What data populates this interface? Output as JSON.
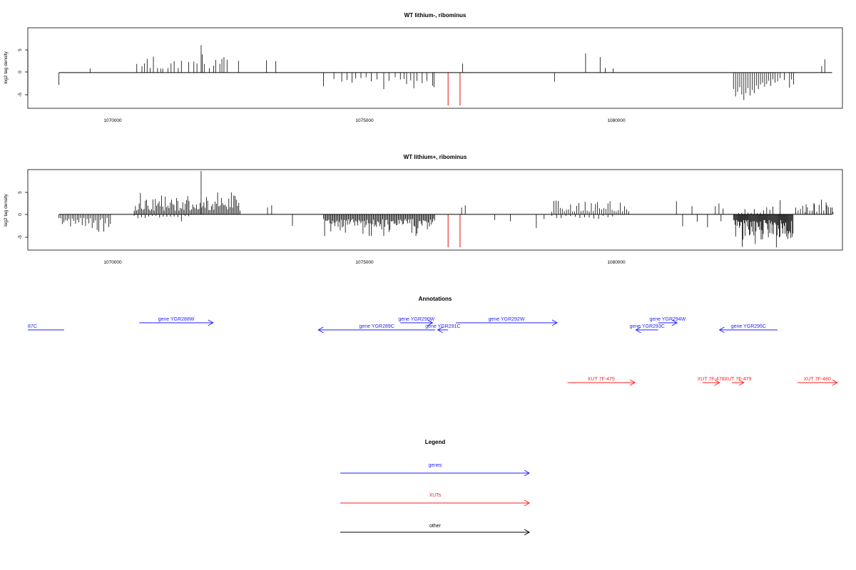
{
  "chart_data": [
    {
      "type": "bar",
      "title": "WT lithium-, ribominus",
      "ylabel": "log2 tag density",
      "xlim": [
        1068200,
        1083900
      ],
      "ylim": [
        -7.8,
        9.8
      ],
      "x_ticks": [
        1070000,
        1075000,
        1080000
      ],
      "x_tick_labels": [
        "1070000",
        "1075000",
        "1080000"
      ],
      "y_ticks": [
        -5,
        0,
        5
      ],
      "y_tick_labels": [
        "-5",
        "0",
        "5"
      ],
      "baseline": {
        "x_start": 1068800,
        "x_end": 1083700
      },
      "highlight_color": "#e8231e",
      "bars": [
        [
          1068800,
          -2.7
        ],
        [
          1069400,
          0.9
        ],
        [
          1070300,
          1.9
        ],
        [
          1070400,
          1.4
        ],
        [
          1070450,
          2.0
        ],
        [
          1070500,
          3.0
        ],
        [
          1070560,
          1.0
        ],
        [
          1070620,
          3.5
        ],
        [
          1070700,
          1.0
        ],
        [
          1070760,
          0.9
        ],
        [
          1070800,
          0.9
        ],
        [
          1070900,
          1.0
        ],
        [
          1070960,
          2.0
        ],
        [
          1071020,
          2.5
        ],
        [
          1071100,
          1.0
        ],
        [
          1071160,
          2.6
        ],
        [
          1071300,
          2.3
        ],
        [
          1071400,
          2.4
        ],
        [
          1071460,
          2.0
        ],
        [
          1071540,
          6.0
        ],
        [
          1071560,
          4.0
        ],
        [
          1071600,
          1.9
        ],
        [
          1071700,
          1.0
        ],
        [
          1071780,
          1.5
        ],
        [
          1071820,
          2.8
        ],
        [
          1071900,
          1.9
        ],
        [
          1071940,
          3.0
        ],
        [
          1071980,
          3.4
        ],
        [
          1072040,
          2.8
        ],
        [
          1072260,
          2.6
        ],
        [
          1072800,
          2.7
        ],
        [
          1072980,
          2.5
        ],
        [
          1073900,
          -3.0
        ],
        [
          1074100,
          -1.4
        ],
        [
          1074250,
          -2.0
        ],
        [
          1074350,
          -1.6
        ],
        [
          1074450,
          -2.2
        ],
        [
          1074520,
          -1.3
        ],
        [
          1074620,
          -1.2
        ],
        [
          1074720,
          -1.0
        ],
        [
          1074820,
          -1.9
        ],
        [
          1074930,
          -1.5
        ],
        [
          1075060,
          -3.6
        ],
        [
          1075160,
          -1.8
        ],
        [
          1075280,
          -1.0
        ],
        [
          1075380,
          -1.5
        ],
        [
          1075450,
          -1.4
        ],
        [
          1075500,
          -2.5
        ],
        [
          1075580,
          -1.7
        ],
        [
          1075640,
          -3.4
        ],
        [
          1075700,
          -1.8
        ],
        [
          1075800,
          -2.3
        ],
        [
          1075890,
          -1.8
        ],
        [
          1076000,
          -2.9
        ],
        [
          1076030,
          -3.2
        ],
        [
          1076300,
          -7.2,
          "h"
        ],
        [
          1076530,
          -7.2,
          "h"
        ],
        [
          1076580,
          2.0
        ],
        [
          1078350,
          -2.0
        ],
        [
          1078950,
          4.2
        ],
        [
          1079230,
          3.4
        ],
        [
          1079330,
          1.0
        ],
        [
          1079480,
          0.9
        ],
        [
          1083500,
          1.4
        ],
        [
          1083560,
          2.9
        ],
        [
          1081800,
          -3.6
        ],
        [
          1081840,
          -5.2
        ],
        [
          1081880,
          -4.2
        ],
        [
          1081920,
          -3.2
        ],
        [
          1081960,
          -4.8
        ],
        [
          1082000,
          -6.0
        ],
        [
          1082040,
          -4.5
        ],
        [
          1082080,
          -3.4
        ],
        [
          1082120,
          -5.0
        ],
        [
          1082160,
          -3.8
        ],
        [
          1082200,
          -4.5
        ],
        [
          1082240,
          -2.8
        ],
        [
          1082280,
          -3.6
        ],
        [
          1082320,
          -2.6
        ],
        [
          1082360,
          -2.2
        ],
        [
          1082400,
          -3.1
        ],
        [
          1082440,
          -2.5
        ],
        [
          1082480,
          -1.8
        ],
        [
          1082520,
          -2.9
        ],
        [
          1082560,
          -1.5
        ],
        [
          1082600,
          -2.2
        ],
        [
          1082650,
          -1.9
        ],
        [
          1082700,
          -1.2
        ],
        [
          1082780,
          -1.6
        ],
        [
          1082880,
          -3.3
        ],
        [
          1082920,
          -1.5
        ],
        [
          1082960,
          -2.6
        ]
      ]
    },
    {
      "type": "bar",
      "title": "WT lithium+, ribominus",
      "ylabel": "log2 tag density",
      "xlim": [
        1068200,
        1083900
      ],
      "ylim": [
        -7.8,
        9.8
      ],
      "x_ticks": [
        1070000,
        1075000,
        1080000
      ],
      "x_tick_labels": [
        "1070000",
        "1075000",
        "1080000"
      ],
      "y_ticks": [
        -5,
        0,
        5
      ],
      "y_tick_labels": [
        "-5",
        "0",
        "5"
      ],
      "baseline": {
        "x_start": 1068800,
        "x_end": 1083700
      },
      "highlight_color": "#e8231e",
      "bars": [
        [
          1076300,
          -7.2,
          "h"
        ],
        [
          1076530,
          -7.2,
          "h"
        ],
        [
          1076560,
          1.5
        ],
        [
          1076630,
          2.0
        ],
        [
          1071540,
          9.5
        ],
        [
          1073300,
          -2.5
        ],
        [
          1072820,
          1.5
        ],
        [
          1072900,
          2.0
        ],
        [
          1077200,
          -1.2
        ],
        [
          1077500,
          -1.5
        ],
        [
          1078000,
          -3.0
        ],
        [
          1078150,
          -1.0
        ],
        [
          1080700,
          2.9
        ],
        [
          1080820,
          -2.6
        ],
        [
          1081000,
          1.8
        ],
        [
          1081100,
          -1.6
        ],
        [
          1081300,
          -2.8
        ],
        [
          1081450,
          1.8
        ],
        [
          1081520,
          2.4
        ],
        [
          1081560,
          -1.5
        ],
        [
          1081600,
          1.3
        ],
        [
          1082700,
          3.1
        ],
        [
          1083000,
          1.5
        ],
        [
          1083200,
          2.2
        ],
        [
          1083350,
          2.5
        ],
        [
          1083600,
          2.0
        ],
        [
          1083700,
          1.5
        ]
      ],
      "noise_segments": [
        {
          "from": 1068800,
          "to": 1069800,
          "sign": -1,
          "min": 0.8,
          "max": 3.8,
          "step": 32,
          "seed": 11
        },
        {
          "from": 1070250,
          "to": 1072300,
          "sign": 1,
          "min": 0.8,
          "max": 4.8,
          "step": 24,
          "seed": 23
        },
        {
          "from": 1070250,
          "to": 1071300,
          "sign": -1,
          "min": 0.3,
          "max": 1.8,
          "step": 70,
          "seed": 29
        },
        {
          "from": 1073900,
          "to": 1076050,
          "sign": -1,
          "min": 1.0,
          "max": 4.7,
          "step": 20,
          "seed": 37
        },
        {
          "from": 1078300,
          "to": 1079800,
          "sign": 1,
          "min": 0.6,
          "max": 3.0,
          "step": 40,
          "seed": 41
        },
        {
          "from": 1078300,
          "to": 1079500,
          "sign": -1,
          "min": 0.3,
          "max": 1.4,
          "step": 90,
          "seed": 43
        },
        {
          "from": 1081800,
          "to": 1082950,
          "sign": -1,
          "min": 1.2,
          "max": 7.2,
          "step": 14,
          "seed": 53
        },
        {
          "from": 1081900,
          "to": 1082600,
          "sign": 1,
          "min": 0.3,
          "max": 2.0,
          "step": 60,
          "seed": 59
        },
        {
          "from": 1083000,
          "to": 1083750,
          "sign": 1,
          "min": 0.5,
          "max": 3.6,
          "step": 45,
          "seed": 61
        }
      ]
    }
  ],
  "annotations": {
    "title": "Annotations",
    "genes_color": "#1f1fff",
    "xuts_color": "#ff1f1f",
    "genes": [
      {
        "label": "87C",
        "from": 1068200,
        "to": 1068900,
        "dir": "none",
        "row": 1
      },
      {
        "label": "gene YGR288W",
        "from": 1070350,
        "to": 1071770,
        "dir": "right",
        "row": 0
      },
      {
        "label": "gene YGR289C",
        "from": 1073800,
        "to": 1076050,
        "dir": "left",
        "row": 1
      },
      {
        "label": "gene YGR290W",
        "from": 1075380,
        "to": 1076000,
        "dir": "right",
        "row": 0
      },
      {
        "label": "gene YGR291C",
        "from": 1076100,
        "to": 1076300,
        "dir": "left",
        "row": 1
      },
      {
        "label": "gene YGR292W",
        "from": 1076450,
        "to": 1078400,
        "dir": "right",
        "row": 0
      },
      {
        "label": "gene YGR293C",
        "from": 1079920,
        "to": 1080350,
        "dir": "left",
        "row": 1
      },
      {
        "label": "gene YGR294W",
        "from": 1080350,
        "to": 1080710,
        "dir": "right",
        "row": 0
      },
      {
        "label": "gene YGR295C",
        "from": 1081530,
        "to": 1082650,
        "dir": "left",
        "row": 1
      }
    ],
    "xuts": [
      {
        "label": "XUT 7F-475",
        "from": 1078600,
        "to": 1079900,
        "dir": "right"
      },
      {
        "label": "XUT 7F-478",
        "from": 1081200,
        "to": 1081530,
        "dir": "right"
      },
      {
        "label": "XUT 7F-479",
        "from": 1081770,
        "to": 1082000,
        "dir": "right"
      },
      {
        "label": "XUT 7F-480",
        "from": 1083030,
        "to": 1083800,
        "dir": "right"
      }
    ]
  },
  "legend": {
    "title": "Legend",
    "items": [
      {
        "label": "genes",
        "color": "#1f1fff"
      },
      {
        "label": "XUTs",
        "color": "#ff1f1f"
      },
      {
        "label": "other",
        "color": "#000000"
      }
    ]
  }
}
